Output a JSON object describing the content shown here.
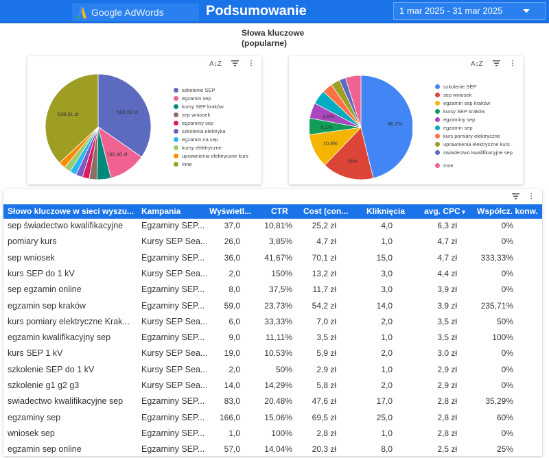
{
  "header": {
    "logo_text": "Google AdWords",
    "title": "Podsumowanie",
    "date_range": "1 mar 2025 - 31 mar 2025"
  },
  "chart_section": {
    "title_line1": "Słowa kluczowe",
    "title_line2": "(popularne)"
  },
  "chart_data": [
    {
      "type": "pie",
      "series": [
        {
          "label": "szkolenie SEP",
          "value": 505.59,
          "color": "#5c6bc0"
        },
        {
          "label": "egzamin sep",
          "value": 166.46,
          "color": "#f06292"
        },
        {
          "label": "kursy SEP kraków",
          "value": 62,
          "color": "#00897b"
        },
        {
          "label": "sep wniosek",
          "value": 35,
          "color": "#8d6e63"
        },
        {
          "label": "egzaminy sep",
          "value": 30,
          "color": "#d81b60"
        },
        {
          "label": "szkolenia elektryka",
          "value": 30,
          "color": "#7e57c2"
        },
        {
          "label": "egzamin na sep",
          "value": 30,
          "color": "#29b6f6"
        },
        {
          "label": "kursy elektryczne",
          "value": 30,
          "color": "#9ccc65"
        },
        {
          "label": "uprawnienia elektryczne kurs",
          "value": 30,
          "color": "#fb8c00"
        },
        {
          "label": "Inne",
          "value": 538.91,
          "color": "#9e9d24"
        }
      ],
      "data_labels": [
        {
          "text": "505,59 zł",
          "label_for": "szkolenie SEP"
        },
        {
          "text": "166,46 zł",
          "label_for": "egzamin sep"
        },
        {
          "text": "538,91 zł",
          "label_for": "Inne"
        }
      ]
    },
    {
      "type": "pie",
      "series": [
        {
          "label": "szkolenie SEP",
          "value": 46.2,
          "color": "#4285f4"
        },
        {
          "label": "sep wniosek",
          "value": 16,
          "color": "#db4437"
        },
        {
          "label": "egzamin sep kraków",
          "value": 10.6,
          "color": "#f4b400"
        },
        {
          "label": "kursy SEP kraków",
          "value": 5.1,
          "color": "#0f9d58"
        },
        {
          "label": "egzaminy sep",
          "value": 4.8,
          "color": "#ab47bc"
        },
        {
          "label": "egzamin sep",
          "value": 4.5,
          "color": "#00acc1"
        },
        {
          "label": "kurs pomiary elektryczne",
          "value": 3.2,
          "color": "#ff7043"
        },
        {
          "label": "uprawnienia elektryczne kurs",
          "value": 2.8,
          "color": "#9e9d24"
        },
        {
          "label": "swiadectwo kwalifikacyjne sep",
          "value": 2.0,
          "color": "#5c6bc0"
        },
        {
          "label": "Inne",
          "value": 4.8,
          "color": "#f06292"
        }
      ],
      "data_labels": [
        {
          "text": "46,2%",
          "label_for": "szkolenie SEP"
        },
        {
          "text": "16%",
          "label_for": "sep wniosek"
        },
        {
          "text": "10,6%",
          "label_for": "egzamin sep kraków"
        },
        {
          "text": "5,1%",
          "label_for": "kursy SEP kraków"
        },
        {
          "text": "4,8%",
          "label_for": "egzaminy sep"
        }
      ]
    }
  ],
  "icons": {
    "sort": "A↕Z",
    "filter": "filter-icon",
    "more": "⋮"
  },
  "table": {
    "columns": [
      "Słowo kluczowe w sieci wyszu...",
      "Kampania",
      "Wyświetl...",
      "CTR",
      "Cost (con...",
      "Kliknięcia",
      "avg. CPC",
      "Współcz. konw."
    ],
    "sort_indicator": "▾",
    "rows": [
      [
        "sep świadectwo kwalifikacyjne",
        "Egzaminy SEP...",
        "37,0",
        "10,81%",
        "25,2 zł",
        "4,0",
        "6,3 zł",
        "0%"
      ],
      [
        "pomiary kurs",
        "Kursy SEP Sea...",
        "26,0",
        "3,85%",
        "4,7 zł",
        "1,0",
        "4,7 zł",
        "0%"
      ],
      [
        "sep wniosek",
        "Egzaminy SEP...",
        "36,0",
        "41,67%",
        "70,1 zł",
        "15,0",
        "4,7 zł",
        "333,33%"
      ],
      [
        "kurs SEP do 1 kV",
        "Kursy SEP Sea...",
        "2,0",
        "150%",
        "13,2 zł",
        "3,0",
        "4,4 zł",
        "0%"
      ],
      [
        "sep egzamin online",
        "Egzaminy SEP...",
        "8,0",
        "37,5%",
        "11,7 zł",
        "3,0",
        "3,9 zł",
        "0%"
      ],
      [
        "egzamin sep kraków",
        "Egzaminy SEP...",
        "59,0",
        "23,73%",
        "54,2 zł",
        "14,0",
        "3,9 zł",
        "235,71%"
      ],
      [
        "kurs pomiary elektryczne Krak...",
        "Kursy SEP Sea...",
        "6,0",
        "33,33%",
        "7,0 zł",
        "2,0",
        "3,5 zł",
        "50%"
      ],
      [
        "egzamin kwalifikacyjny sep",
        "Egzaminy SEP...",
        "9,0",
        "11,11%",
        "3,5 zł",
        "1,0",
        "3,5 zł",
        "100%"
      ],
      [
        "kurs SEP 1 kV",
        "Kursy SEP Sea...",
        "19,0",
        "10,53%",
        "5,9 zł",
        "2,0",
        "3,0 zł",
        "0%"
      ],
      [
        "szkolenie SEP do 1 kV",
        "Kursy SEP Sea...",
        "2,0",
        "50%",
        "2,9 zł",
        "1,0",
        "2,9 zł",
        "0%"
      ],
      [
        "szkolenie g1 g2 g3",
        "Kursy SEP Sea...",
        "14,0",
        "14,29%",
        "5,8 zł",
        "2,0",
        "2,9 zł",
        "0%"
      ],
      [
        "swiadectwo kwalifikacyjne sep",
        "Egzaminy SEP...",
        "83,0",
        "20,48%",
        "47,6 zł",
        "17,0",
        "2,8 zł",
        "35,29%"
      ],
      [
        "egzaminy sep",
        "Egzaminy SEP...",
        "166,0",
        "15,06%",
        "69,5 zł",
        "25,0",
        "2,8 zł",
        "60%"
      ],
      [
        "wniosek sep",
        "Egzaminy SEP...",
        "1,0",
        "100%",
        "2,8 zł",
        "1,0",
        "2,8 zł",
        "0%"
      ],
      [
        "egzamin sep online",
        "Egzaminy SEP...",
        "57,0",
        "14,04%",
        "20,3 zł",
        "8,0",
        "2,5 zł",
        "25%"
      ]
    ]
  }
}
